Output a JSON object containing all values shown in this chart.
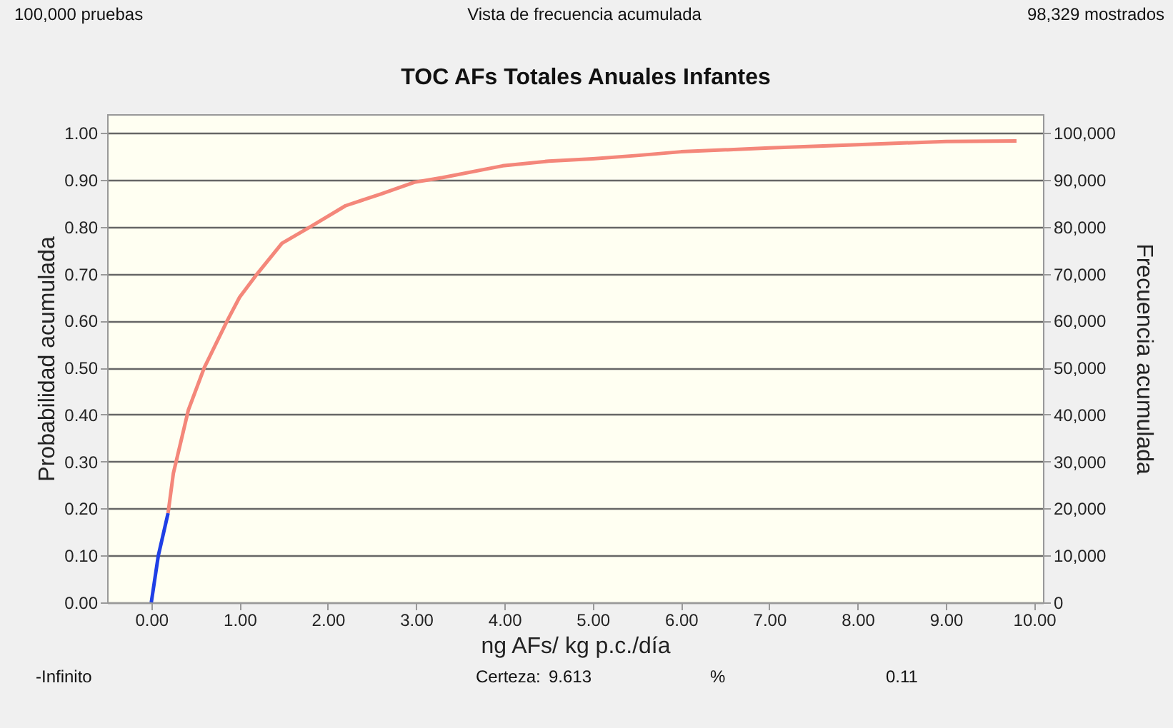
{
  "chart_data": {
    "type": "line",
    "title": "TOC AFs Totales Anuales Infantes",
    "xlabel": "ng AFs/ kg p.c./día",
    "ylabel": "Probabilidad acumulada",
    "y2label": "Frecuencia acumulada",
    "series": [
      {
        "color": "#1f3fe6",
        "x": [
          0,
          0.08,
          0.19
        ],
        "values": [
          0,
          0.1,
          0.19
        ]
      },
      {
        "color": "#f4877a",
        "x": [
          0.19,
          0.25,
          0.42,
          0.6,
          0.86,
          1.0,
          1.2,
          1.48,
          1.8,
          2.2,
          2.6,
          2.98,
          3.3,
          3.98,
          4.5,
          5.0,
          5.5,
          6.0,
          7.0,
          8.0,
          9.0,
          9.8
        ],
        "values": [
          0.19,
          0.275,
          0.41,
          0.5,
          0.6,
          0.65,
          0.7,
          0.765,
          0.8,
          0.845,
          0.87,
          0.895,
          0.905,
          0.93,
          0.94,
          0.945,
          0.952,
          0.96,
          0.968,
          0.975,
          0.982,
          0.983
        ]
      }
    ],
    "xlim": [
      -0.5,
      10.1
    ],
    "xticks": [
      {
        "value": 0,
        "label": "0.00"
      },
      {
        "value": 1,
        "label": "1.00"
      },
      {
        "value": 2,
        "label": "2.00"
      },
      {
        "value": 3,
        "label": "3.00"
      },
      {
        "value": 4,
        "label": "4.00"
      },
      {
        "value": 5,
        "label": "5.00"
      },
      {
        "value": 6,
        "label": "6.00"
      },
      {
        "value": 7,
        "label": "7.00"
      },
      {
        "value": 8,
        "label": "8.00"
      },
      {
        "value": 9,
        "label": "9.00"
      },
      {
        "value": 10,
        "label": "10.00"
      }
    ],
    "ylim": [
      0,
      1.04
    ],
    "yticks": [
      {
        "value": 0,
        "label": "0.00"
      },
      {
        "value": 0.1,
        "label": "0.10"
      },
      {
        "value": 0.2,
        "label": "0.20"
      },
      {
        "value": 0.3,
        "label": "0.30"
      },
      {
        "value": 0.4,
        "label": "0.40"
      },
      {
        "value": 0.5,
        "label": "0.50"
      },
      {
        "value": 0.6,
        "label": "0.60"
      },
      {
        "value": 0.7,
        "label": "0.70"
      },
      {
        "value": 0.8,
        "label": "0.80"
      },
      {
        "value": 0.9,
        "label": "0.90"
      },
      {
        "value": 1.0,
        "label": "1.00"
      }
    ],
    "y2lim": [
      0,
      104000
    ],
    "y2ticks": [
      {
        "value": 0,
        "label": "0"
      },
      {
        "value": 10000,
        "label": "10,000"
      },
      {
        "value": 20000,
        "label": "20,000"
      },
      {
        "value": 30000,
        "label": "30,000"
      },
      {
        "value": 40000,
        "label": "40,000"
      },
      {
        "value": 50000,
        "label": "50,000"
      },
      {
        "value": 60000,
        "label": "60,000"
      },
      {
        "value": 70000,
        "label": "70,000"
      },
      {
        "value": 80000,
        "label": "80,000"
      },
      {
        "value": 90000,
        "label": "90,000"
      },
      {
        "value": 100000,
        "label": "100,000"
      }
    ],
    "grid": "y",
    "line_style": "solid",
    "marker": "none",
    "annotations": [
      "100,000 pruebas",
      "Vista de frecuencia acumulada",
      "98,329 mostrados",
      "-Infinito",
      "Certeza:",
      "9.613",
      "%",
      "0.11"
    ]
  }
}
